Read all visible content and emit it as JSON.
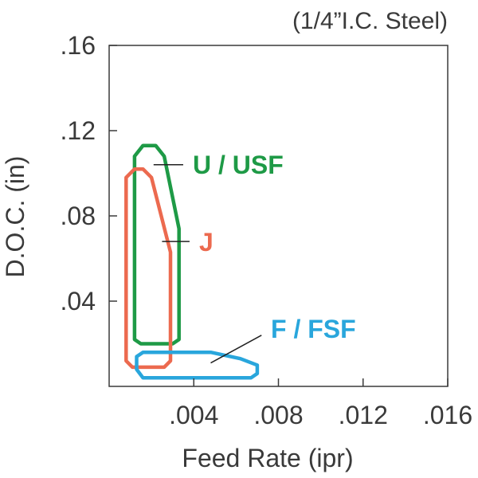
{
  "chart_data": {
    "type": "region",
    "note": "(1/4”I.C. Steel)",
    "xlabel": "Feed Rate (ipr)",
    "ylabel": "D.O.C. (in)",
    "xlim": [
      0,
      0.016
    ],
    "ylim": [
      0,
      0.16
    ],
    "x_ticks": [
      {
        "value": 0.004,
        "label": ".004"
      },
      {
        "value": 0.008,
        "label": ".008"
      },
      {
        "value": 0.012,
        "label": ".012"
      },
      {
        "value": 0.016,
        "label": ".016"
      }
    ],
    "y_ticks": [
      {
        "value": 0.04,
        "label": ".04"
      },
      {
        "value": 0.08,
        "label": ".08"
      },
      {
        "value": 0.12,
        "label": ".12"
      },
      {
        "value": 0.16,
        "label": ".16"
      }
    ],
    "grid": false,
    "regions": [
      {
        "name": "U / USF",
        "color": "#1e9a46",
        "outline": [
          [
            0.0012,
            0.022
          ],
          [
            0.0012,
            0.108
          ],
          [
            0.0016,
            0.113
          ],
          [
            0.0022,
            0.113
          ],
          [
            0.0026,
            0.108
          ],
          [
            0.0033,
            0.074
          ],
          [
            0.0033,
            0.022
          ],
          [
            0.003,
            0.02
          ],
          [
            0.0015,
            0.02
          ]
        ],
        "pointer": [
          [
            0.0021,
            0.104
          ],
          [
            0.0035,
            0.104
          ]
        ]
      },
      {
        "name": "J",
        "color": "#ec6a4f",
        "outline": [
          [
            0.0008,
            0.012
          ],
          [
            0.0008,
            0.098
          ],
          [
            0.0012,
            0.102
          ],
          [
            0.0016,
            0.102
          ],
          [
            0.002,
            0.098
          ],
          [
            0.0029,
            0.063
          ],
          [
            0.0029,
            0.012
          ],
          [
            0.0026,
            0.009
          ],
          [
            0.0011,
            0.009
          ]
        ],
        "pointer": [
          [
            0.0025,
            0.068
          ],
          [
            0.0038,
            0.068
          ]
        ]
      },
      {
        "name": "F / FSF",
        "color": "#29a6dc",
        "outline": [
          [
            0.0013,
            0.008
          ],
          [
            0.0013,
            0.014
          ],
          [
            0.0016,
            0.016
          ],
          [
            0.0048,
            0.016
          ],
          [
            0.0062,
            0.013
          ],
          [
            0.007,
            0.01
          ],
          [
            0.007,
            0.006
          ],
          [
            0.0067,
            0.004
          ],
          [
            0.0016,
            0.004
          ]
        ],
        "pointer": [
          [
            0.0048,
            0.011
          ],
          [
            0.0072,
            0.024
          ]
        ]
      }
    ]
  }
}
